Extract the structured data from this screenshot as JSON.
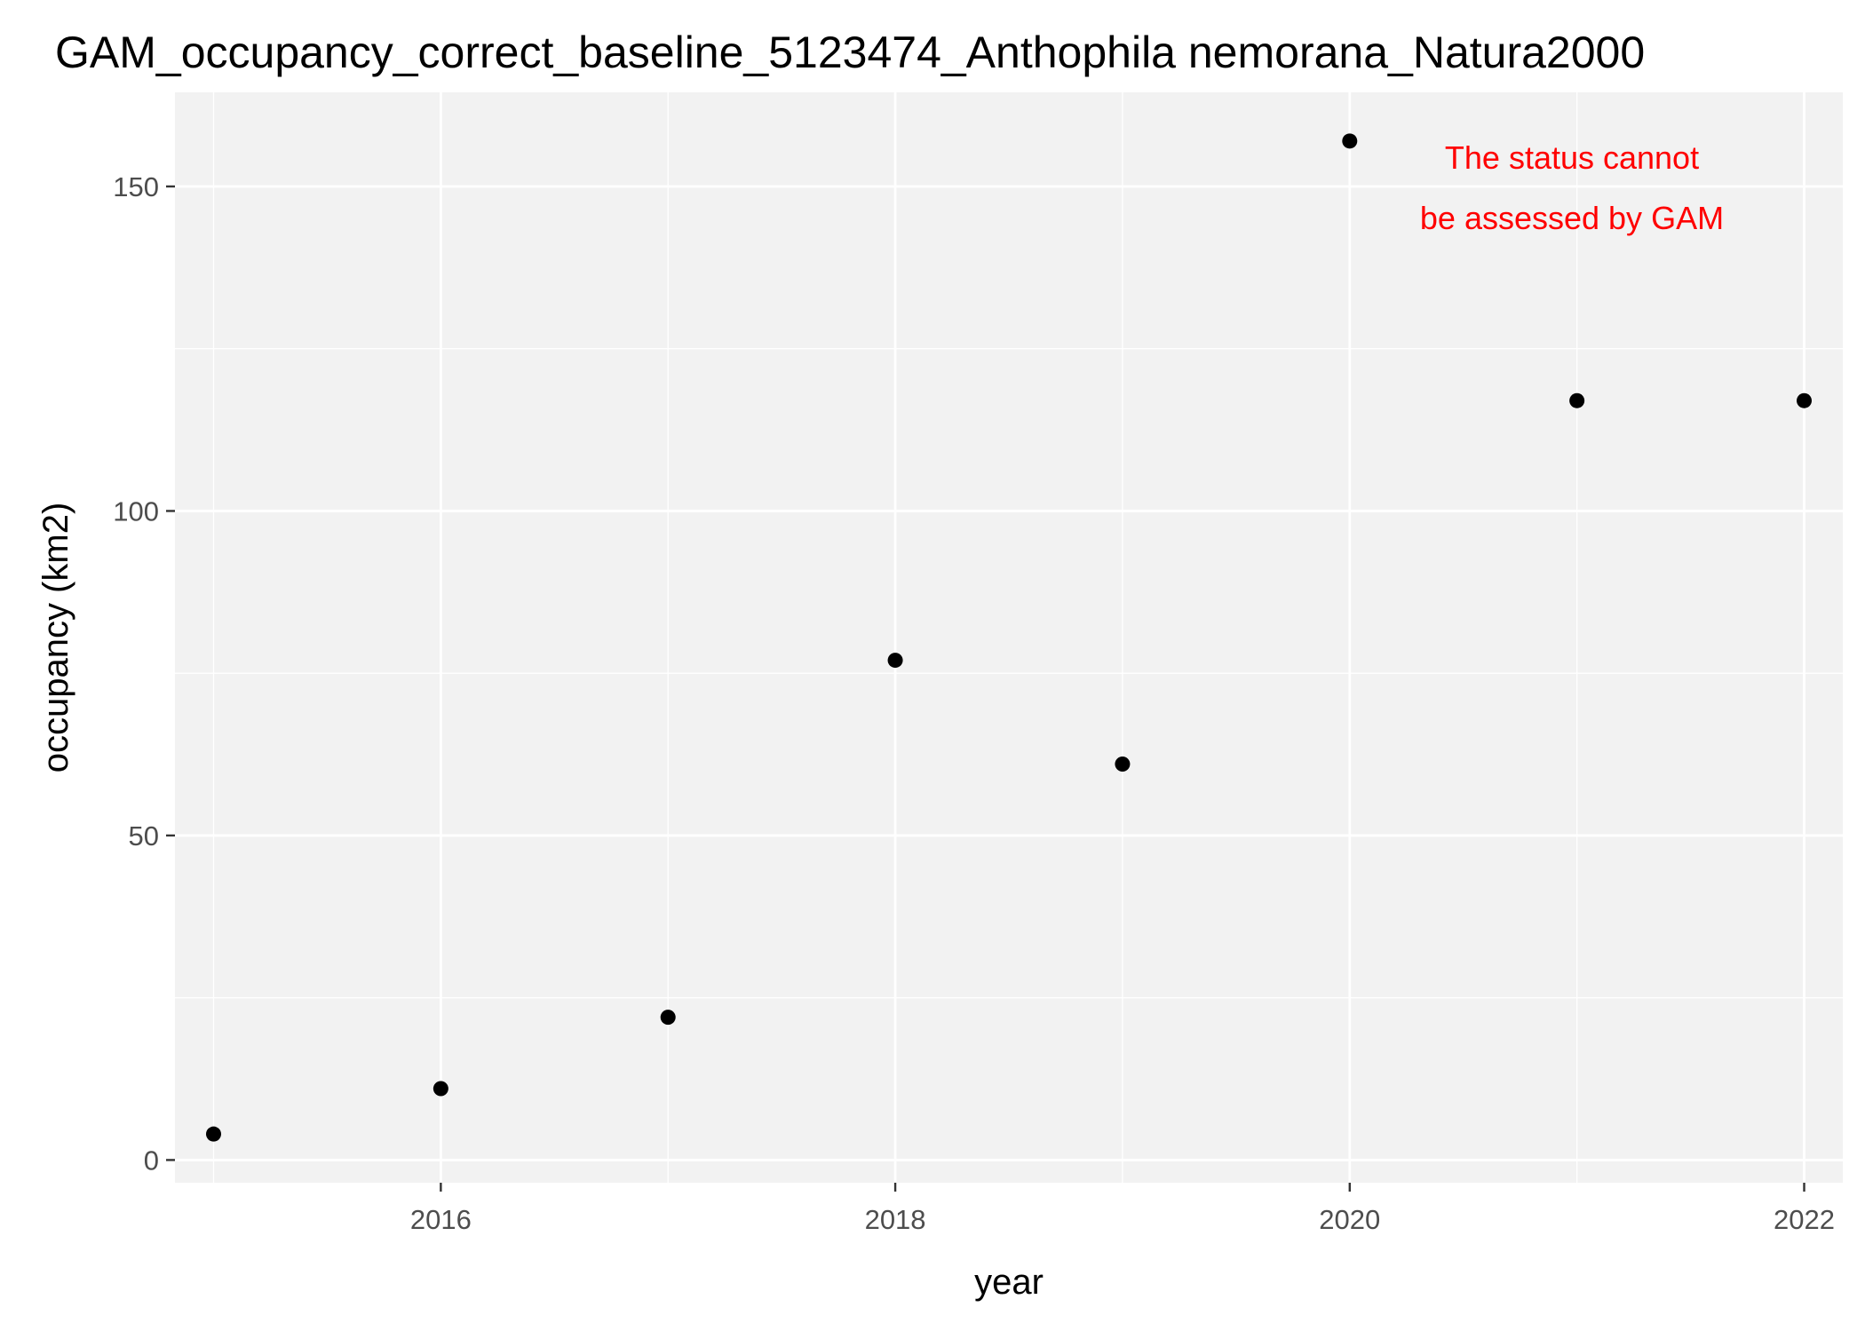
{
  "chart_data": {
    "type": "scatter",
    "title": "GAM_occupancy_correct_baseline_5123474_Anthophila nemorana_Natura2000",
    "xlabel": "year",
    "ylabel": "occupancy (km2)",
    "xlim": [
      2014.83,
      2022.17
    ],
    "ylim": [
      -3.5,
      164.5
    ],
    "x_ticks": [
      2016,
      2018,
      2020,
      2022
    ],
    "y_ticks": [
      0,
      50,
      100,
      150
    ],
    "x_tick_labels": [
      "2016",
      "2018",
      "2020",
      "2022"
    ],
    "y_tick_labels": [
      "0",
      "50",
      "100",
      "150"
    ],
    "x_minor_ticks": [
      2015,
      2017,
      2019,
      2021
    ],
    "y_minor_ticks": [
      25,
      75,
      125
    ],
    "grid": true,
    "panel_color": "#f2f2f2",
    "grid_color": "#ffffff",
    "point_color": "#000000",
    "x": [
      2015,
      2016,
      2017,
      2018,
      2019,
      2020,
      2021,
      2022
    ],
    "y": [
      4,
      11,
      22,
      77,
      61,
      157,
      117,
      117
    ],
    "annotation": {
      "lines": [
        "The status cannot",
        "be assessed by GAM"
      ],
      "color": "#ff0000",
      "position": "top-right"
    }
  }
}
